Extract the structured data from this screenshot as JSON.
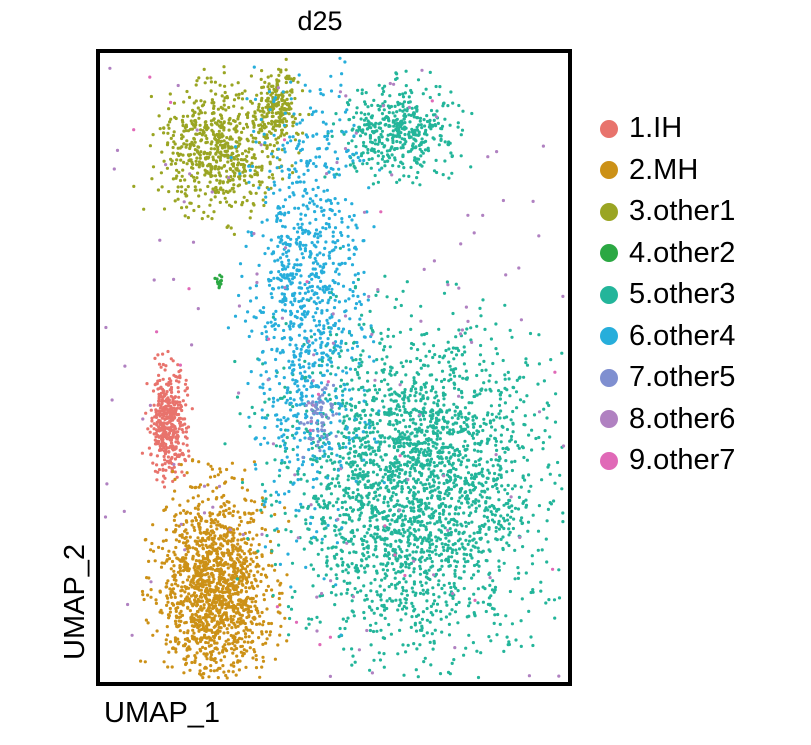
{
  "chart_data": {
    "type": "scatter",
    "title": "d25",
    "xlabel": "UMAP_1",
    "ylabel": "UMAP_2",
    "xlim": [
      0,
      100
    ],
    "ylim": [
      0,
      100
    ],
    "grid": false,
    "axis_ticks": false,
    "legend_position": "right",
    "series": [
      {
        "name": "1.IH",
        "color": "#E8736C"
      },
      {
        "name": "2.MH",
        "color": "#CC9117"
      },
      {
        "name": "3.other1",
        "color": "#9AA523"
      },
      {
        "name": "4.other2",
        "color": "#2BA843"
      },
      {
        "name": "5.other3",
        "color": "#23B59A"
      },
      {
        "name": "6.other4",
        "color": "#27AEDB"
      },
      {
        "name": "7.other5",
        "color": "#7F8FD0"
      },
      {
        "name": "8.other6",
        "color": "#B081C1"
      },
      {
        "name": "9.other7",
        "color": "#E069B7"
      }
    ],
    "clusters": [
      {
        "series": 0,
        "center": [
          14,
          41
        ],
        "spread": [
          4,
          9
        ],
        "n": 420
      },
      {
        "series": 1,
        "center": [
          24,
          14
        ],
        "spread": [
          13,
          17
        ],
        "n": 1500
      },
      {
        "series": 2,
        "center": [
          25,
          85
        ],
        "spread": [
          14,
          11
        ],
        "n": 650
      },
      {
        "series": 2,
        "center": [
          38,
          92
        ],
        "spread": [
          5,
          6
        ],
        "n": 200
      },
      {
        "series": 3,
        "center": [
          25,
          64
        ],
        "spread": [
          1,
          1.5
        ],
        "n": 12
      },
      {
        "series": 4,
        "center": [
          64,
          88
        ],
        "spread": [
          14,
          8
        ],
        "n": 450
      },
      {
        "series": 4,
        "center": [
          68,
          31
        ],
        "spread": [
          30,
          27
        ],
        "n": 2600
      },
      {
        "series": 5,
        "center": [
          44,
          62
        ],
        "spread": [
          14,
          37
        ],
        "n": 1000
      },
      {
        "series": 6,
        "center": [
          47,
          42
        ],
        "spread": [
          4,
          6
        ],
        "n": 60
      },
      {
        "series": 7,
        "center": [
          50,
          50
        ],
        "spread": [
          95,
          90
        ],
        "n": 220
      },
      {
        "series": 8,
        "center": [
          50,
          50
        ],
        "spread": [
          90,
          90
        ],
        "n": 40
      }
    ]
  }
}
